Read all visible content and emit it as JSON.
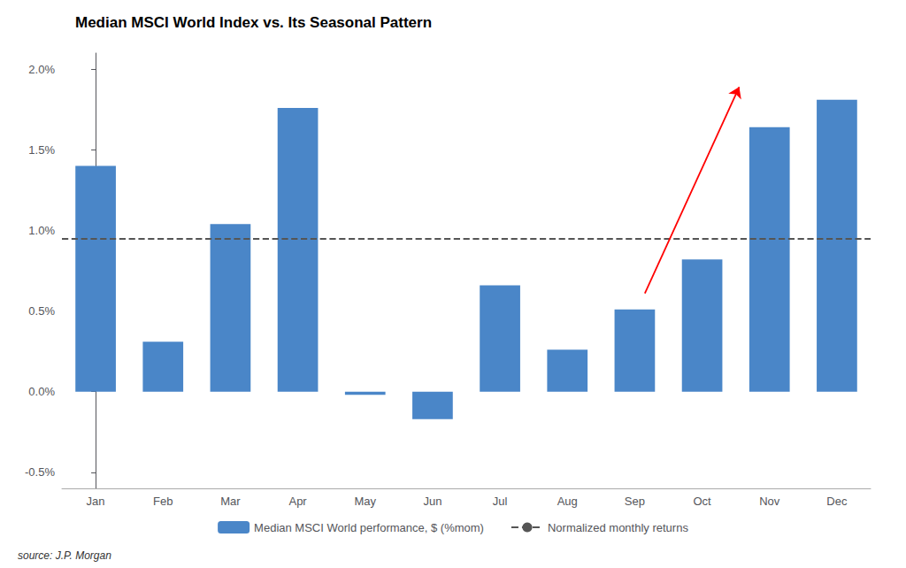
{
  "chart_data": {
    "type": "bar",
    "title": "Median MSCI World Index vs. Its Seasonal Pattern",
    "categories": [
      "Jan",
      "Feb",
      "Mar",
      "Apr",
      "May",
      "Jun",
      "Jul",
      "Aug",
      "Sep",
      "Oct",
      "Nov",
      "Dec"
    ],
    "series": [
      {
        "name": "Median MSCI World performance, $ (%mom)",
        "type": "bar",
        "color": "#4a86c8",
        "values": [
          1.4,
          0.31,
          1.04,
          1.76,
          -0.02,
          -0.17,
          0.66,
          0.26,
          0.51,
          0.82,
          1.64,
          1.81
        ]
      }
    ],
    "reference_line": {
      "name": "Normalized monthly returns",
      "y": 0.955,
      "color": "#555555",
      "line_style": "dashed"
    },
    "annotations": [
      {
        "type": "arrow",
        "from": [
          8.15,
          0.61
        ],
        "to": [
          9.55,
          1.89
        ],
        "color": "red"
      }
    ],
    "source": "source: J.P. Morgan",
    "ylim": [
      -0.6,
      2.1
    ],
    "yticks": [
      {
        "value": -0.5,
        "label": "-0.5%"
      },
      {
        "value": 0.0,
        "label": "0.0%"
      },
      {
        "value": 0.5,
        "label": "0.5%"
      },
      {
        "value": 1.0,
        "label": "1.0%"
      },
      {
        "value": 1.5,
        "label": "1.5%"
      },
      {
        "value": 2.0,
        "label": "2.0%"
      }
    ],
    "grid": false,
    "legend": "bottom"
  }
}
